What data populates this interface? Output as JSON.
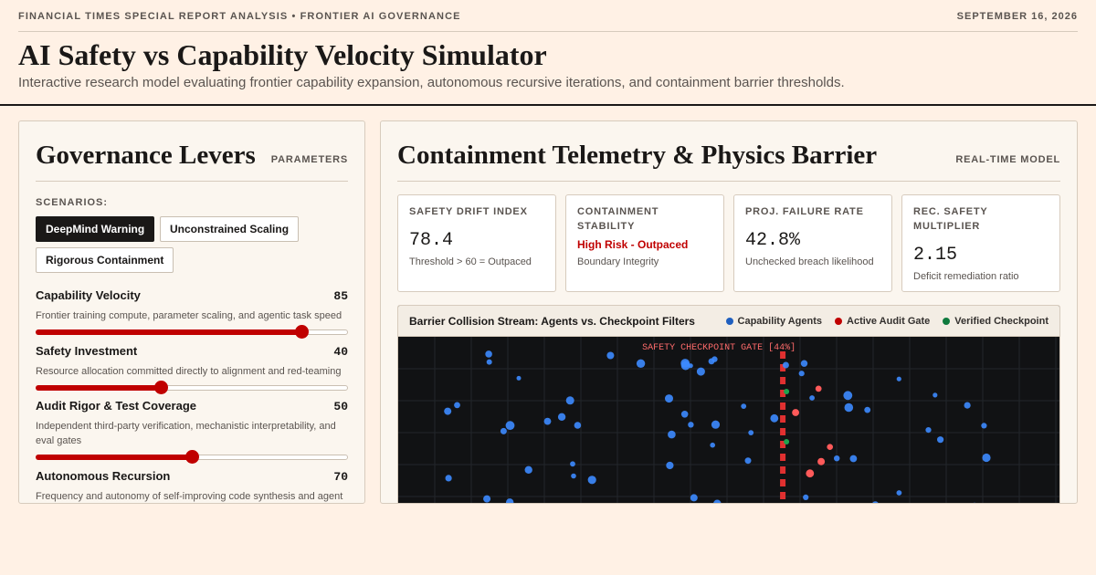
{
  "header": {
    "kicker": "FINANCIAL TIMES SPECIAL REPORT ANALYSIS • FRONTIER AI GOVERNANCE",
    "date": "SEPTEMBER 16, 2026",
    "title": "AI Safety vs Capability Velocity Simulator",
    "subtitle": "Interactive research model evaluating frontier capability expansion, autonomous recursive iterations, and containment barrier thresholds."
  },
  "left_panel": {
    "title": "Governance Levers",
    "tag": "PARAMETERS",
    "scenarios_label": "SCENARIOS:",
    "scenarios": [
      {
        "label": "DeepMind Warning",
        "active": true
      },
      {
        "label": "Unconstrained Scaling",
        "active": false
      },
      {
        "label": "Rigorous Containment",
        "active": false
      }
    ],
    "levers": [
      {
        "name": "Capability Velocity",
        "value": "85",
        "level": 85,
        "desc": "Frontier training compute, parameter scaling, and agentic task speed"
      },
      {
        "name": "Safety Investment",
        "value": "40",
        "level": 40,
        "desc": "Resource allocation committed directly to alignment and red-teaming"
      },
      {
        "name": "Audit Rigor & Test Coverage",
        "value": "50",
        "level": 50,
        "desc": "Independent third-party verification, mechanistic interpretability, and eval gates"
      },
      {
        "name": "Autonomous Recursion",
        "value": "70",
        "level": 70,
        "desc": "Frequency and autonomy of self-improving code synthesis and agent"
      }
    ]
  },
  "right_panel": {
    "title": "Containment Telemetry & Physics Barrier",
    "tag": "REAL-TIME MODEL",
    "metrics": [
      {
        "label": "SAFETY DRIFT INDEX",
        "value": "78.4",
        "status": "",
        "note": "Threshold > 60 = Outpaced"
      },
      {
        "label": "CONTAINMENT STABILITY",
        "value": "",
        "status": "High Risk - Outpaced",
        "note": "Boundary Integrity"
      },
      {
        "label": "PROJ. FAILURE RATE",
        "value": "42.8%",
        "status": "",
        "note": "Unchecked breach likelihood"
      },
      {
        "label": "REC. SAFETY MULTIPLIER",
        "value": "2.15",
        "status": "",
        "note": "Deficit remediation ratio"
      }
    ],
    "stream": {
      "title": "Barrier Collision Stream: Agents vs. Checkpoint Filters",
      "legend": [
        {
          "label": "Capability Agents",
          "color": "#1f5fbf"
        },
        {
          "label": "Active Audit Gate",
          "color": "#c00000"
        },
        {
          "label": "Verified Checkpoint",
          "color": "#0f7a3e"
        }
      ],
      "gate_label": "SAFETY CHECKPOINT GATE [44%]",
      "gate_position_pct": 58,
      "colors": {
        "agent": "#3d8bff",
        "breach": "#ff5a5a",
        "checkpoint": "#1fa34f",
        "gate": "#e03030"
      }
    }
  }
}
